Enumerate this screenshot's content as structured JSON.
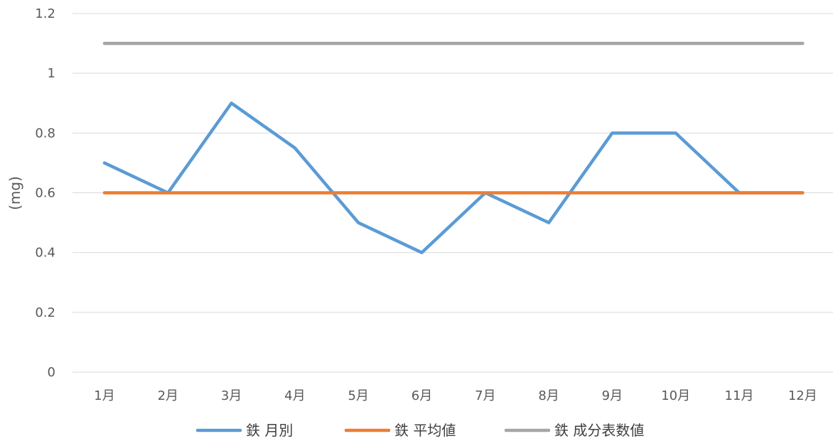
{
  "chart_data": {
    "type": "line",
    "categories": [
      "1月",
      "2月",
      "3月",
      "4月",
      "5月",
      "6月",
      "7月",
      "8月",
      "9月",
      "10月",
      "11月",
      "12月"
    ],
    "series": [
      {
        "name": "鉄 月別",
        "color": "#5b9bd5",
        "values": [
          0.7,
          0.6,
          0.9,
          0.75,
          0.5,
          0.4,
          0.6,
          0.5,
          0.8,
          0.8,
          0.6,
          0.6
        ]
      },
      {
        "name": "鉄 平均値",
        "color": "#ed7d31",
        "values": [
          0.6,
          0.6,
          0.6,
          0.6,
          0.6,
          0.6,
          0.6,
          0.6,
          0.6,
          0.6,
          0.6,
          0.6
        ]
      },
      {
        "name": "鉄 成分表数値",
        "color": "#a5a5a5",
        "values": [
          1.1,
          1.1,
          1.1,
          1.1,
          1.1,
          1.1,
          1.1,
          1.1,
          1.1,
          1.1,
          1.1,
          1.1
        ]
      }
    ],
    "ylabel": "(mg)",
    "ylim": [
      0,
      1.2
    ],
    "yticks": [
      "0",
      "0.2",
      "0.4",
      "0.6",
      "0.8",
      "1",
      "1.2"
    ],
    "grid": true,
    "legend_position": "bottom"
  }
}
